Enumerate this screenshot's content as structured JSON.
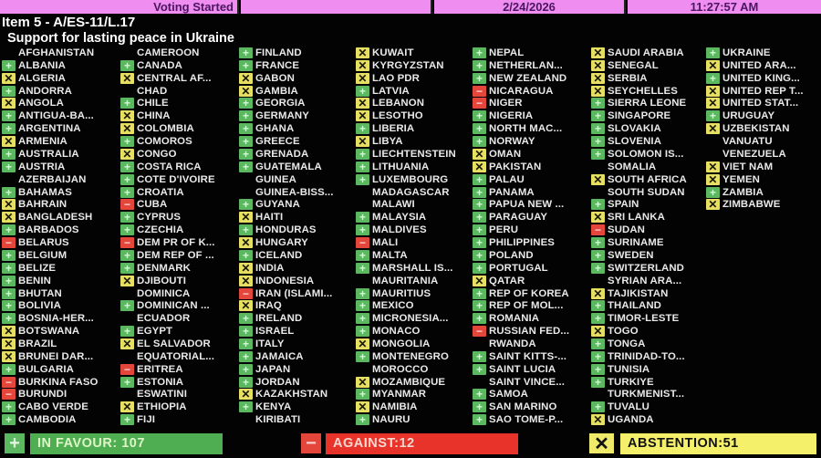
{
  "header": {
    "status": "Voting Started",
    "blank": "",
    "date": "2/24/2026",
    "time": "11:27:57 AM"
  },
  "item": {
    "title": "Item 5 - A/ES-11/L.17",
    "subtitle": "Support for lasting peace in Ukraine"
  },
  "colors": {
    "in_favour": "#5cb860",
    "against": "#e5463c",
    "abstention": "#e6df62",
    "header_bg": "#ef8ef0"
  },
  "vote_icons": {
    "Y": "plus-icon",
    "N": "minus-icon",
    "A": "x-icon"
  },
  "columns": [
    [
      [
        "AFGHANISTAN",
        ""
      ],
      [
        "ALBANIA",
        "Y"
      ],
      [
        "ALGERIA",
        "A"
      ],
      [
        "ANDORRA",
        "Y"
      ],
      [
        "ANGOLA",
        "A"
      ],
      [
        "ANTIGUA-BA...",
        "Y"
      ],
      [
        "ARGENTINA",
        "Y"
      ],
      [
        "ARMENIA",
        "A"
      ],
      [
        "AUSTRALIA",
        "Y"
      ],
      [
        "AUSTRIA",
        "Y"
      ],
      [
        "AZERBAIJAN",
        ""
      ],
      [
        "BAHAMAS",
        "Y"
      ],
      [
        "BAHRAIN",
        "A"
      ],
      [
        "BANGLADESH",
        "A"
      ],
      [
        "BARBADOS",
        "Y"
      ],
      [
        "BELARUS",
        "N"
      ],
      [
        "BELGIUM",
        "Y"
      ],
      [
        "BELIZE",
        "Y"
      ],
      [
        "BENIN",
        "Y"
      ],
      [
        "BHUTAN",
        "Y"
      ],
      [
        "BOLIVIA",
        "Y"
      ],
      [
        "BOSNIA-HER...",
        "Y"
      ],
      [
        "BOTSWANA",
        "A"
      ],
      [
        "BRAZIL",
        "A"
      ],
      [
        "BRUNEI DAR...",
        "A"
      ],
      [
        "BULGARIA",
        "Y"
      ],
      [
        "BURKINA FASO",
        "N"
      ],
      [
        "BURUNDI",
        "N"
      ],
      [
        "CABO VERDE",
        "Y"
      ],
      [
        "CAMBODIA",
        "Y"
      ]
    ],
    [
      [
        "CAMEROON",
        ""
      ],
      [
        "CANADA",
        "Y"
      ],
      [
        "CENTRAL AF...",
        "A"
      ],
      [
        "CHAD",
        ""
      ],
      [
        "CHILE",
        "Y"
      ],
      [
        "CHINA",
        "A"
      ],
      [
        "COLOMBIA",
        "A"
      ],
      [
        "COMOROS",
        "Y"
      ],
      [
        "CONGO",
        "A"
      ],
      [
        "COSTA RICA",
        "Y"
      ],
      [
        "COTE D'IVOIRE",
        "Y"
      ],
      [
        "CROATIA",
        "Y"
      ],
      [
        "CUBA",
        "N"
      ],
      [
        "CYPRUS",
        "Y"
      ],
      [
        "CZECHIA",
        "Y"
      ],
      [
        "DEM PR OF K...",
        "N"
      ],
      [
        "DEM REP OF ...",
        "Y"
      ],
      [
        "DENMARK",
        "Y"
      ],
      [
        "DJIBOUTI",
        "A"
      ],
      [
        "DOMINICA",
        ""
      ],
      [
        "DOMINICAN ...",
        "Y"
      ],
      [
        "ECUADOR",
        ""
      ],
      [
        "EGYPT",
        "Y"
      ],
      [
        "EL SALVADOR",
        "A"
      ],
      [
        "EQUATORIAL...",
        ""
      ],
      [
        "ERITREA",
        "N"
      ],
      [
        "ESTONIA",
        "Y"
      ],
      [
        "ESWATINI",
        ""
      ],
      [
        "ETHIOPIA",
        "A"
      ],
      [
        "FIJI",
        "Y"
      ]
    ],
    [
      [
        "FINLAND",
        "Y"
      ],
      [
        "FRANCE",
        "Y"
      ],
      [
        "GABON",
        "A"
      ],
      [
        "GAMBIA",
        "A"
      ],
      [
        "GEORGIA",
        "Y"
      ],
      [
        "GERMANY",
        "Y"
      ],
      [
        "GHANA",
        "Y"
      ],
      [
        "GREECE",
        "Y"
      ],
      [
        "GRENADA",
        "Y"
      ],
      [
        "GUATEMALA",
        "Y"
      ],
      [
        "GUINEA",
        ""
      ],
      [
        "GUINEA-BISS...",
        ""
      ],
      [
        "GUYANA",
        "Y"
      ],
      [
        "HAITI",
        "A"
      ],
      [
        "HONDURAS",
        "Y"
      ],
      [
        "HUNGARY",
        "A"
      ],
      [
        "ICELAND",
        "Y"
      ],
      [
        "INDIA",
        "A"
      ],
      [
        "INDONESIA",
        "A"
      ],
      [
        "IRAN (ISLAMI...",
        "N"
      ],
      [
        "IRAQ",
        "A"
      ],
      [
        "IRELAND",
        "Y"
      ],
      [
        "ISRAEL",
        "Y"
      ],
      [
        "ITALY",
        "Y"
      ],
      [
        "JAMAICA",
        "Y"
      ],
      [
        "JAPAN",
        "Y"
      ],
      [
        "JORDAN",
        "Y"
      ],
      [
        "KAZAKHSTAN",
        "A"
      ],
      [
        "KENYA",
        "Y"
      ],
      [
        "KIRIBATI",
        ""
      ]
    ],
    [
      [
        "KUWAIT",
        "A"
      ],
      [
        "KYRGYZSTAN",
        "A"
      ],
      [
        "LAO PDR",
        "A"
      ],
      [
        "LATVIA",
        "Y"
      ],
      [
        "LEBANON",
        "A"
      ],
      [
        "LESOTHO",
        "A"
      ],
      [
        "LIBERIA",
        "Y"
      ],
      [
        "LIBYA",
        "A"
      ],
      [
        "LIECHTENSTEIN",
        "Y"
      ],
      [
        "LITHUANIA",
        "Y"
      ],
      [
        "LUXEMBOURG",
        "Y"
      ],
      [
        "MADAGASCAR",
        ""
      ],
      [
        "MALAWI",
        ""
      ],
      [
        "MALAYSIA",
        "Y"
      ],
      [
        "MALDIVES",
        "Y"
      ],
      [
        "MALI",
        "N"
      ],
      [
        "MALTA",
        "Y"
      ],
      [
        "MARSHALL IS...",
        "Y"
      ],
      [
        "MAURITANIA",
        ""
      ],
      [
        "MAURITIUS",
        "Y"
      ],
      [
        "MEXICO",
        "Y"
      ],
      [
        "MICRONESIA...",
        "Y"
      ],
      [
        "MONACO",
        "Y"
      ],
      [
        "MONGOLIA",
        "A"
      ],
      [
        "MONTENEGRO",
        "Y"
      ],
      [
        "MOROCCO",
        ""
      ],
      [
        "MOZAMBIQUE",
        "A"
      ],
      [
        "MYANMAR",
        "Y"
      ],
      [
        "NAMIBIA",
        "A"
      ],
      [
        "NAURU",
        "Y"
      ]
    ],
    [
      [
        "NEPAL",
        "Y"
      ],
      [
        "NETHERLAN...",
        "Y"
      ],
      [
        "NEW ZEALAND",
        "Y"
      ],
      [
        "NICARAGUA",
        "N"
      ],
      [
        "NIGER",
        "N"
      ],
      [
        "NIGERIA",
        "Y"
      ],
      [
        "NORTH MAC...",
        "Y"
      ],
      [
        "NORWAY",
        "Y"
      ],
      [
        "OMAN",
        "A"
      ],
      [
        "PAKISTAN",
        "A"
      ],
      [
        "PALAU",
        "Y"
      ],
      [
        "PANAMA",
        "Y"
      ],
      [
        "PAPUA NEW ...",
        "Y"
      ],
      [
        "PARAGUAY",
        "Y"
      ],
      [
        "PERU",
        "Y"
      ],
      [
        "PHILIPPINES",
        "Y"
      ],
      [
        "POLAND",
        "Y"
      ],
      [
        "PORTUGAL",
        "Y"
      ],
      [
        "QATAR",
        "A"
      ],
      [
        "REP OF KOREA",
        "Y"
      ],
      [
        "REP OF MOL...",
        "Y"
      ],
      [
        "ROMANIA",
        "Y"
      ],
      [
        "RUSSIAN FED...",
        "N"
      ],
      [
        "RWANDA",
        ""
      ],
      [
        "SAINT KITTS-...",
        "Y"
      ],
      [
        "SAINT LUCIA",
        "Y"
      ],
      [
        "SAINT VINCE...",
        ""
      ],
      [
        "SAMOA",
        "Y"
      ],
      [
        "SAN MARINO",
        "Y"
      ],
      [
        "SAO TOME-P...",
        "Y"
      ]
    ],
    [
      [
        "SAUDI ARABIA",
        "A"
      ],
      [
        "SENEGAL",
        "A"
      ],
      [
        "SERBIA",
        "A"
      ],
      [
        "SEYCHELLES",
        "A"
      ],
      [
        "SIERRA LEONE",
        "Y"
      ],
      [
        "SINGAPORE",
        "Y"
      ],
      [
        "SLOVAKIA",
        "Y"
      ],
      [
        "SLOVENIA",
        "Y"
      ],
      [
        "SOLOMON IS...",
        "Y"
      ],
      [
        "SOMALIA",
        ""
      ],
      [
        "SOUTH AFRICA",
        "A"
      ],
      [
        "SOUTH SUDAN",
        ""
      ],
      [
        "SPAIN",
        "Y"
      ],
      [
        "SRI LANKA",
        "A"
      ],
      [
        "SUDAN",
        "N"
      ],
      [
        "SURINAME",
        "Y"
      ],
      [
        "SWEDEN",
        "Y"
      ],
      [
        "SWITZERLAND",
        "Y"
      ],
      [
        "SYRIAN ARA...",
        ""
      ],
      [
        "TAJIKISTAN",
        "A"
      ],
      [
        "THAILAND",
        "Y"
      ],
      [
        "TIMOR-LESTE",
        "Y"
      ],
      [
        "TOGO",
        "A"
      ],
      [
        "TONGA",
        "Y"
      ],
      [
        "TRINIDAD-TO...",
        "Y"
      ],
      [
        "TUNISIA",
        "Y"
      ],
      [
        "TURKIYE",
        "Y"
      ],
      [
        "TURKMENIST...",
        ""
      ],
      [
        "TUVALU",
        "Y"
      ],
      [
        "UGANDA",
        "A"
      ]
    ],
    [
      [
        "UKRAINE",
        "Y"
      ],
      [
        "UNITED ARA...",
        "A"
      ],
      [
        "UNITED KING...",
        "Y"
      ],
      [
        "UNITED REP T...",
        "A"
      ],
      [
        "UNITED STAT...",
        "A"
      ],
      [
        "URUGUAY",
        "Y"
      ],
      [
        "UZBEKISTAN",
        "A"
      ],
      [
        "VANUATU",
        ""
      ],
      [
        "VENEZUELA",
        ""
      ],
      [
        "VIET NAM",
        "A"
      ],
      [
        "YEMEN",
        "A"
      ],
      [
        "ZAMBIA",
        "Y"
      ],
      [
        "ZIMBABWE",
        "A"
      ]
    ]
  ],
  "totals": {
    "in_favour": "IN FAVOUR: 107",
    "against": "AGAINST:12",
    "abstention": "ABSTENTION:51"
  }
}
